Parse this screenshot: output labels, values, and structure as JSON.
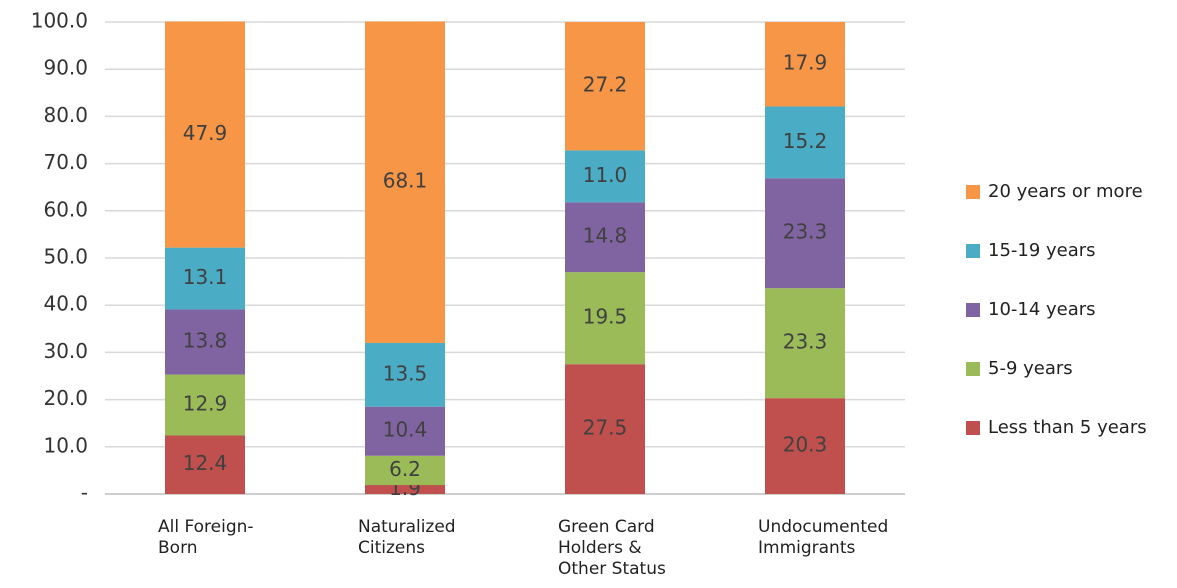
{
  "chart_data": {
    "type": "stacked_bar",
    "categories": [
      "All Foreign-Born",
      "Naturalized Citizens",
      "Green Card Holders & Other Status",
      "Undocumented Immigrants"
    ],
    "series": [
      {
        "name": "Less than 5 years",
        "color": "#c0504d",
        "values": [
          12.4,
          1.9,
          27.5,
          20.3
        ]
      },
      {
        "name": "5-9 years",
        "color": "#9bbb59",
        "values": [
          12.9,
          6.2,
          19.5,
          23.3
        ]
      },
      {
        "name": "10-14 years",
        "color": "#8064a2",
        "values": [
          13.8,
          10.4,
          14.8,
          23.3
        ]
      },
      {
        "name": "15-19 years",
        "color": "#4bacc6",
        "values": [
          13.1,
          13.5,
          11.0,
          15.2
        ],
        "value_labels": [
          "13.1",
          "13.5",
          "11.0",
          "15.2"
        ]
      },
      {
        "name": "20 years or more",
        "color": "#f79646",
        "values": [
          47.9,
          68.1,
          27.2,
          17.9
        ]
      }
    ],
    "ylim": [
      0,
      100
    ],
    "yticks": [
      {
        "value": 0,
        "label": "-"
      },
      {
        "value": 10,
        "label": "10.0"
      },
      {
        "value": 20,
        "label": "20.0"
      },
      {
        "value": 30,
        "label": "30.0"
      },
      {
        "value": 40,
        "label": "40.0"
      },
      {
        "value": 50,
        "label": "50.0"
      },
      {
        "value": 60,
        "label": "60.0"
      },
      {
        "value": 70,
        "label": "70.0"
      },
      {
        "value": 80,
        "label": "80.0"
      },
      {
        "value": 90,
        "label": "90.0"
      },
      {
        "value": 100,
        "label": "100.0"
      }
    ],
    "grid": true,
    "legend": "right"
  }
}
